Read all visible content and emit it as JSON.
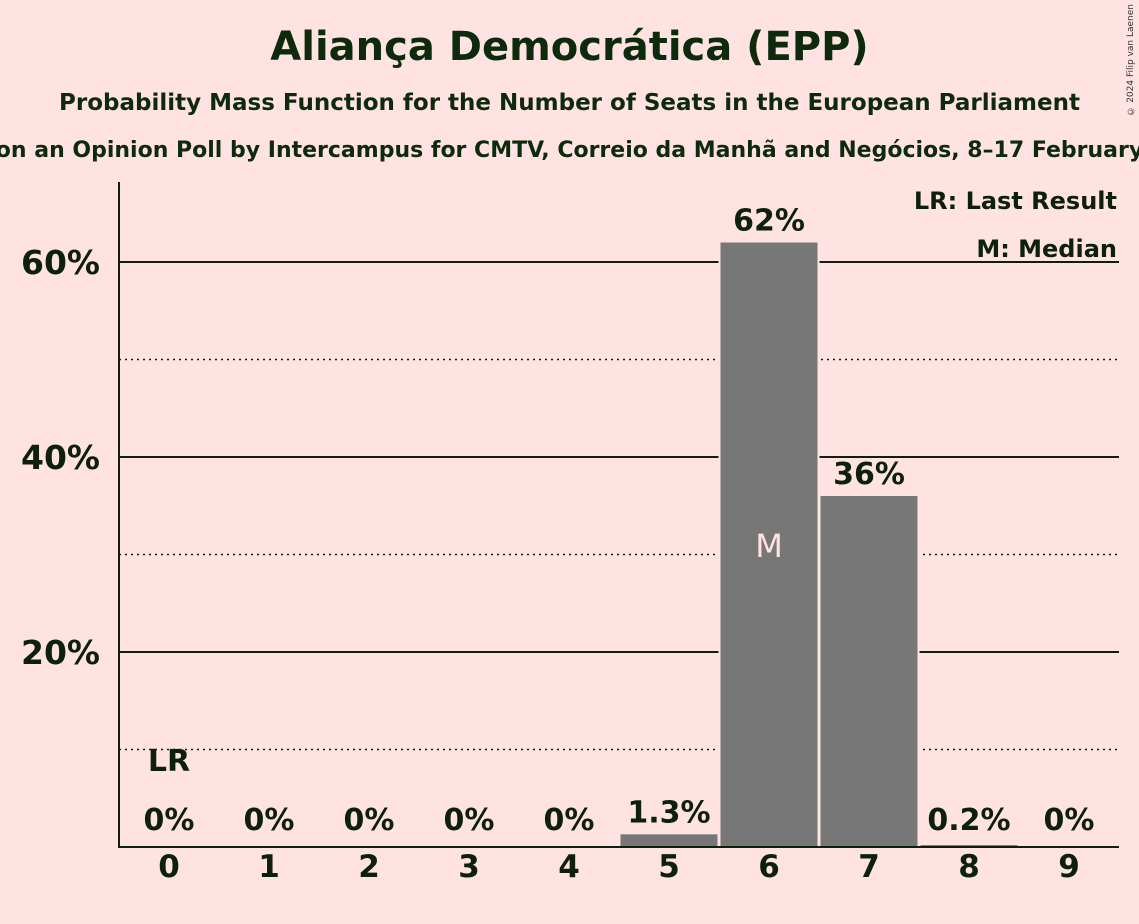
{
  "title": "Aliança Democrática (EPP)",
  "subtitle": "Probability Mass Function for the Number of Seats in the European Parliament",
  "source": "on an Opinion Poll by Intercampus for CMTV, Correio da Manhã and Negócios, 8–17 February",
  "copyright": "© 2024 Filip van Laenen",
  "legend": {
    "last_result": "LR: Last Result",
    "median": "M: Median"
  },
  "colors": {
    "background": "#FFE2E2",
    "bar": "#777777",
    "text": "#0d1f0d"
  },
  "chart_data": {
    "type": "bar",
    "categories": [
      "0",
      "1",
      "2",
      "3",
      "4",
      "5",
      "6",
      "7",
      "8",
      "9"
    ],
    "values": [
      0,
      0,
      0,
      0,
      0,
      1.3,
      62,
      36,
      0.2,
      0
    ],
    "value_labels": [
      "0%",
      "0%",
      "0%",
      "0%",
      "0%",
      "1.3%",
      "62%",
      "36%",
      "0.2%",
      "0%"
    ],
    "ylim": [
      0,
      68
    ],
    "yticks": [
      20,
      40,
      60
    ],
    "ytick_labels": [
      "20%",
      "40%",
      "60%"
    ],
    "minor_gridlines": [
      10,
      30,
      50
    ],
    "last_result_category": "0",
    "last_result_label": "LR",
    "median_category": "6",
    "median_label": "M"
  }
}
